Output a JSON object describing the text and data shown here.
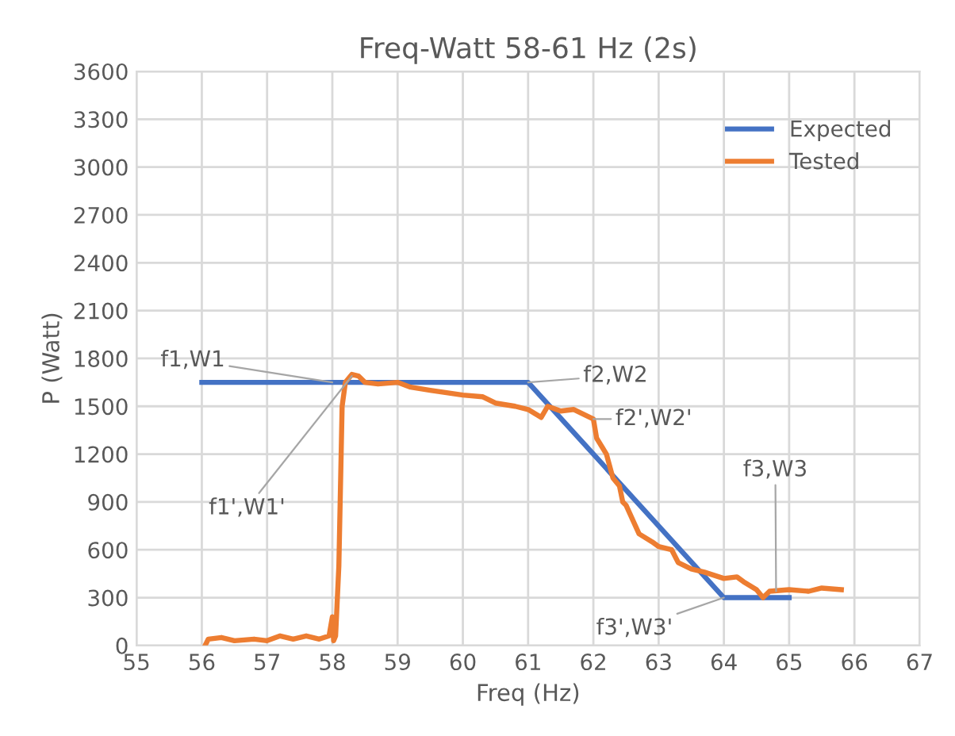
{
  "chart_data": {
    "type": "line",
    "title": "Freq-Watt 58-61 Hz (2s)",
    "xlabel": "Freq (Hz)",
    "ylabel": "P (Watt)",
    "xlim": [
      55,
      67
    ],
    "xticks": [
      55,
      56,
      57,
      58,
      59,
      60,
      61,
      62,
      63,
      64,
      65,
      66,
      67
    ],
    "ylim": [
      0,
      3600
    ],
    "yticks": [
      0,
      300,
      600,
      900,
      1200,
      1500,
      1800,
      2100,
      2400,
      2700,
      3000,
      3300,
      3600
    ],
    "grid": true,
    "legend": "top right",
    "marker": "none",
    "line_style": "solid",
    "series": [
      {
        "name": "Expected",
        "color": "#4472c4",
        "x": [
          56,
          61,
          64,
          65
        ],
        "values": [
          1650,
          1650,
          300,
          300
        ]
      },
      {
        "name": "Tested",
        "color": "#ed7d31",
        "x": [
          56.05,
          56.1,
          56.3,
          56.5,
          56.8,
          57,
          57.2,
          57.4,
          57.6,
          57.8,
          57.95,
          58.0,
          58.02,
          58.05,
          58.1,
          58.15,
          58.2,
          58.3,
          58.4,
          58.5,
          58.7,
          59,
          59.2,
          59.5,
          60,
          60.3,
          60.5,
          60.8,
          61,
          61.2,
          61.3,
          61.5,
          61.7,
          62,
          62.05,
          62.2,
          62.3,
          62.4,
          62.45,
          62.5,
          62.7,
          62.9,
          63.0,
          63.2,
          63.3,
          63.5,
          63.7,
          64,
          64.2,
          64.3,
          64.5,
          64.6,
          64.7,
          65,
          65.3,
          65.5,
          65.8
        ],
        "values": [
          0,
          40,
          50,
          30,
          40,
          30,
          60,
          40,
          60,
          40,
          60,
          180,
          30,
          60,
          500,
          1500,
          1650,
          1700,
          1690,
          1650,
          1640,
          1650,
          1620,
          1600,
          1570,
          1560,
          1520,
          1500,
          1480,
          1430,
          1500,
          1470,
          1480,
          1420,
          1300,
          1200,
          1050,
          1000,
          900,
          880,
          700,
          650,
          620,
          600,
          520,
          480,
          460,
          420,
          430,
          400,
          350,
          300,
          340,
          350,
          340,
          360,
          350
        ]
      }
    ],
    "annotations": [
      {
        "text": "f1,W1",
        "x": 58.0,
        "y": 1650
      },
      {
        "text": "f1',W1'",
        "x": 58.3,
        "y": 1690
      },
      {
        "text": "f2,W2",
        "x": 61,
        "y": 1650
      },
      {
        "text": "f2',W2'",
        "x": 62,
        "y": 1420
      },
      {
        "text": "f3,W3",
        "x": 64.8,
        "y": 340
      },
      {
        "text": "f3',W3'",
        "x": 64,
        "y": 300
      }
    ]
  }
}
